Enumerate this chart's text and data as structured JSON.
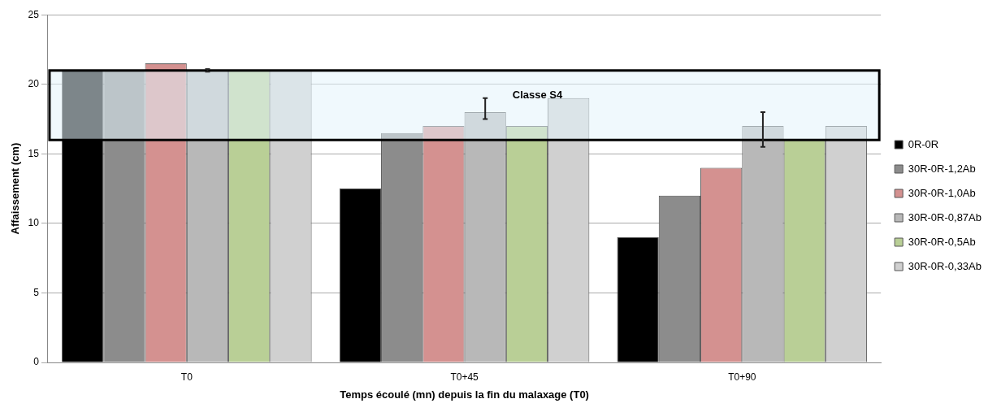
{
  "chart_data": {
    "type": "bar",
    "xlabel": "Temps écoulé (mn) depuis la fin du malaxage (T0)",
    "ylabel": "Affaissement (cm)",
    "categories": [
      "T0",
      "T0+45",
      "T0+90"
    ],
    "series": [
      {
        "name": "0R-0R",
        "color": "#000000",
        "values": [
          21,
          12.5,
          9
        ]
      },
      {
        "name": "30R-0R-1,2Ab",
        "color": "#8c8c8c",
        "values": [
          21,
          16.5,
          12
        ]
      },
      {
        "name": "30R-0R-1,0Ab",
        "color": "#d49190",
        "values": [
          21.5,
          17,
          14
        ]
      },
      {
        "name": "30R-0R-0,87Ab",
        "color": "#b8b8b8",
        "values": [
          21,
          18,
          17
        ],
        "errors": [
          [
            20.9,
            21.1
          ],
          [
            17.5,
            19
          ],
          [
            15.5,
            18
          ]
        ]
      },
      {
        "name": "30R-0R-0,5Ab",
        "color": "#b9cf96",
        "values": [
          21,
          17,
          16
        ]
      },
      {
        "name": "30R-0R-0,33Ab",
        "color": "#d0d0d0",
        "values": [
          21,
          19,
          17
        ]
      }
    ],
    "ylim": [
      0,
      25
    ],
    "yticks": [
      0,
      5,
      10,
      15,
      20,
      25
    ],
    "grid": "y",
    "legend": "right",
    "bands": [
      {
        "axis": "y",
        "from": 16,
        "to": 21,
        "label": "Classe S4",
        "color": "#e3f4fc"
      }
    ]
  }
}
